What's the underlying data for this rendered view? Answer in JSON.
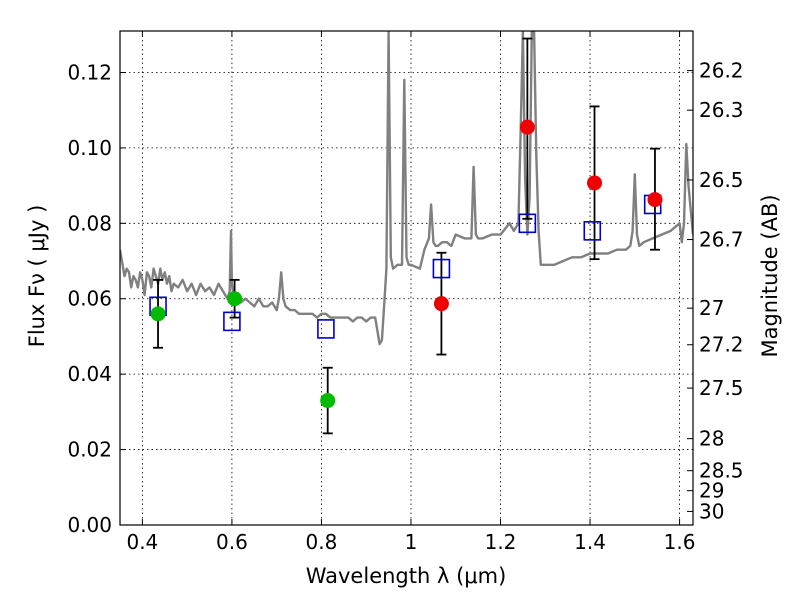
{
  "chart_data": {
    "type": "scatter",
    "xlabel": "Wavelength  λ (μm)",
    "ylabel": "Flux  Fν  ( μJy )",
    "ylabel_right": "Magnitude (AB)",
    "xlim": [
      0.35,
      1.63
    ],
    "ylim": [
      0.0,
      0.131
    ],
    "grid": true,
    "x_ticks": [
      {
        "value": 0.4,
        "label": "0.4"
      },
      {
        "value": 0.6,
        "label": "0.6"
      },
      {
        "value": 0.8,
        "label": "0.8"
      },
      {
        "value": 1.0,
        "label": "1"
      },
      {
        "value": 1.2,
        "label": "1.2"
      },
      {
        "value": 1.4,
        "label": "1.4"
      },
      {
        "value": 1.6,
        "label": "1.6"
      }
    ],
    "y_ticks": [
      {
        "value": 0.0,
        "label": "0.00"
      },
      {
        "value": 0.02,
        "label": "0.02"
      },
      {
        "value": 0.04,
        "label": "0.04"
      },
      {
        "value": 0.06,
        "label": "0.06"
      },
      {
        "value": 0.08,
        "label": "0.08"
      },
      {
        "value": 0.1,
        "label": "0.10"
      },
      {
        "value": 0.12,
        "label": "0.12"
      }
    ],
    "right_ticks": [
      {
        "flux": 0.1205,
        "label": "26.2"
      },
      {
        "flux": 0.11,
        "label": "26.3"
      },
      {
        "flux": 0.0915,
        "label": "26.5"
      },
      {
        "flux": 0.0757,
        "label": "26.7"
      },
      {
        "flux": 0.0575,
        "label": "27"
      },
      {
        "flux": 0.0478,
        "label": "27.2"
      },
      {
        "flux": 0.0363,
        "label": "27.5"
      },
      {
        "flux": 0.0229,
        "label": "28"
      },
      {
        "flux": 0.0144,
        "label": "28.5"
      },
      {
        "flux": 0.0091,
        "label": "29"
      },
      {
        "flux": 0.0036,
        "label": "30"
      }
    ],
    "series": [
      {
        "style": "model-spectrum",
        "color": "#808080",
        "x": [
          0.35,
          0.36,
          0.365,
          0.37,
          0.375,
          0.38,
          0.385,
          0.39,
          0.395,
          0.4,
          0.405,
          0.41,
          0.415,
          0.42,
          0.425,
          0.43,
          0.435,
          0.44,
          0.445,
          0.45,
          0.455,
          0.46,
          0.465,
          0.47,
          0.48,
          0.49,
          0.5,
          0.51,
          0.52,
          0.53,
          0.54,
          0.55,
          0.56,
          0.57,
          0.58,
          0.59,
          0.595,
          0.598,
          0.6,
          0.603,
          0.61,
          0.62,
          0.63,
          0.64,
          0.65,
          0.66,
          0.67,
          0.68,
          0.69,
          0.7,
          0.705,
          0.71,
          0.715,
          0.72,
          0.73,
          0.74,
          0.75,
          0.76,
          0.77,
          0.78,
          0.79,
          0.8,
          0.81,
          0.82,
          0.83,
          0.84,
          0.85,
          0.86,
          0.87,
          0.88,
          0.89,
          0.9,
          0.91,
          0.92,
          0.93,
          0.935,
          0.94,
          0.945,
          0.95,
          0.955,
          0.96,
          0.97,
          0.98,
          0.985,
          0.99,
          0.995,
          1.0,
          1.02,
          1.03,
          1.04,
          1.045,
          1.05,
          1.055,
          1.06,
          1.07,
          1.08,
          1.09,
          1.1,
          1.12,
          1.135,
          1.14,
          1.145,
          1.15,
          1.16,
          1.18,
          1.2,
          1.22,
          1.23,
          1.24,
          1.245,
          1.25,
          1.255,
          1.26,
          1.265,
          1.27,
          1.275,
          1.28,
          1.285,
          1.29,
          1.3,
          1.32,
          1.34,
          1.36,
          1.38,
          1.4,
          1.42,
          1.44,
          1.46,
          1.48,
          1.49,
          1.495,
          1.5,
          1.505,
          1.51,
          1.52,
          1.54,
          1.56,
          1.58,
          1.6,
          1.605,
          1.61,
          1.615,
          1.62,
          1.63
        ],
        "y": [
          0.073,
          0.066,
          0.068,
          0.067,
          0.063,
          0.066,
          0.065,
          0.063,
          0.067,
          0.065,
          0.061,
          0.067,
          0.066,
          0.063,
          0.068,
          0.066,
          0.064,
          0.068,
          0.065,
          0.067,
          0.064,
          0.066,
          0.062,
          0.064,
          0.063,
          0.065,
          0.062,
          0.064,
          0.061,
          0.064,
          0.062,
          0.063,
          0.061,
          0.064,
          0.062,
          0.06,
          0.062,
          0.078,
          0.064,
          0.061,
          0.06,
          0.059,
          0.06,
          0.059,
          0.058,
          0.06,
          0.058,
          0.058,
          0.059,
          0.057,
          0.06,
          0.067,
          0.06,
          0.058,
          0.057,
          0.057,
          0.056,
          0.056,
          0.056,
          0.056,
          0.055,
          0.056,
          0.056,
          0.055,
          0.055,
          0.055,
          0.055,
          0.055,
          0.054,
          0.055,
          0.055,
          0.054,
          0.055,
          0.055,
          0.048,
          0.049,
          0.058,
          0.068,
          0.131,
          0.071,
          0.068,
          0.069,
          0.069,
          0.118,
          0.071,
          0.069,
          0.069,
          0.068,
          0.073,
          0.076,
          0.085,
          0.075,
          0.074,
          0.074,
          0.075,
          0.075,
          0.074,
          0.077,
          0.076,
          0.076,
          0.095,
          0.077,
          0.076,
          0.076,
          0.077,
          0.077,
          0.08,
          0.078,
          0.08,
          0.105,
          0.131,
          0.092,
          0.077,
          0.087,
          0.131,
          0.131,
          0.098,
          0.078,
          0.069,
          0.069,
          0.069,
          0.07,
          0.071,
          0.071,
          0.072,
          0.072,
          0.072,
          0.073,
          0.073,
          0.074,
          0.078,
          0.093,
          0.077,
          0.074,
          0.075,
          0.076,
          0.077,
          0.078,
          0.08,
          0.075,
          0.08,
          0.101,
          0.09,
          0.077
        ]
      },
      {
        "style": "observed-detection",
        "color": "#00bb00",
        "x": [
          0.435,
          0.606,
          0.814
        ],
        "y": [
          0.056,
          0.06,
          0.033
        ],
        "yerr_low": [
          0.009,
          0.005,
          0.0087
        ],
        "yerr_high": [
          0.009,
          0.005,
          0.0087
        ]
      },
      {
        "style": "observed-detection",
        "color": "#ee0000",
        "x": [
          1.068,
          1.26,
          1.41,
          1.545
        ],
        "y": [
          0.0587,
          0.1055,
          0.0907,
          0.0863
        ],
        "yerr_low": [
          0.0135,
          0.0243,
          0.0202,
          0.0133
        ],
        "yerr_high": [
          0.0135,
          0.0235,
          0.0203,
          0.0135
        ]
      },
      {
        "style": "model-photometry",
        "color": "#0000cc",
        "x": [
          0.435,
          0.6,
          0.81,
          1.068,
          1.26,
          1.405,
          1.54
        ],
        "y": [
          0.058,
          0.054,
          0.052,
          0.068,
          0.08,
          0.078,
          0.085
        ]
      }
    ]
  }
}
